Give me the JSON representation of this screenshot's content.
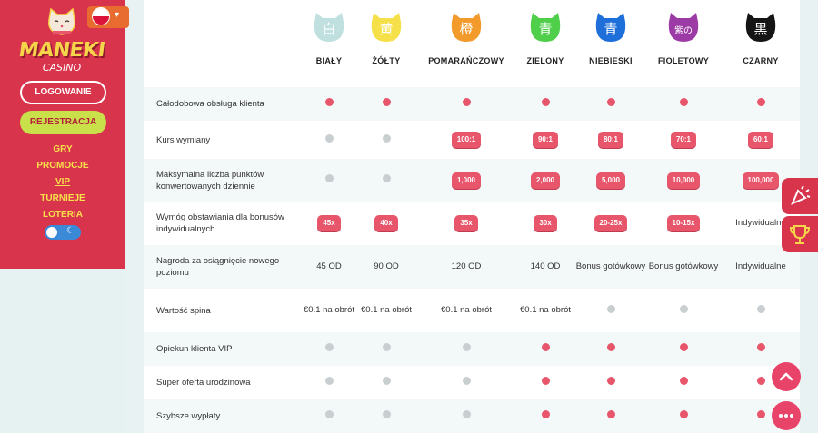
{
  "sidebar": {
    "logo_text": "MANEKI",
    "logo_sub": "CASINO",
    "login_label": "LOGOWANIE",
    "register_label": "REJESTRACJA",
    "nav": [
      "GRY",
      "PROMOCJE",
      "VIP",
      "TURNIEJE",
      "LOTERIA"
    ]
  },
  "tiers": [
    {
      "name": "BIAŁY",
      "glyph": "白",
      "color": "#bfe0de",
      "glyph_color": "#fff"
    },
    {
      "name": "ŻÓŁTY",
      "glyph": "黄",
      "color": "#f5e04a",
      "glyph_color": "#fff"
    },
    {
      "name": "POMARAŃCZOWY",
      "glyph": "橙",
      "color": "#f39a2c",
      "glyph_color": "#fff"
    },
    {
      "name": "ZIELONY",
      "glyph": "青",
      "color": "#4fcf4a",
      "glyph_color": "#fff"
    },
    {
      "name": "NIEBIESKI",
      "glyph": "青",
      "color": "#1e6fd9",
      "glyph_color": "#fff"
    },
    {
      "name": "FIOLETOWY",
      "glyph": "紫の",
      "color": "#9c3aa6",
      "glyph_color": "#fff"
    },
    {
      "name": "CZARNY",
      "glyph": "黒",
      "color": "#151515",
      "glyph_color": "#fff"
    }
  ],
  "rows": [
    {
      "label": "Całodobowa obsługa klienta",
      "cells": [
        {
          "t": "dot",
          "c": "red"
        },
        {
          "t": "dot",
          "c": "red"
        },
        {
          "t": "dot",
          "c": "red"
        },
        {
          "t": "dot",
          "c": "red"
        },
        {
          "t": "dot",
          "c": "red"
        },
        {
          "t": "dot",
          "c": "red"
        },
        {
          "t": "dot",
          "c": "red"
        }
      ]
    },
    {
      "label": "Kurs wymiany",
      "cells": [
        {
          "t": "dot",
          "c": "gray"
        },
        {
          "t": "dot",
          "c": "gray"
        },
        {
          "t": "pill",
          "v": "100:1"
        },
        {
          "t": "pill",
          "v": "90:1"
        },
        {
          "t": "pill",
          "v": "80:1"
        },
        {
          "t": "pill",
          "v": "70:1"
        },
        {
          "t": "pill",
          "v": "60:1"
        }
      ]
    },
    {
      "label": "Maksymalna liczba punktów konwertowanych dziennie",
      "cells": [
        {
          "t": "dot",
          "c": "gray"
        },
        {
          "t": "dot",
          "c": "gray"
        },
        {
          "t": "pill",
          "v": "1,000"
        },
        {
          "t": "pill",
          "v": "2,000"
        },
        {
          "t": "pill",
          "v": "5,000"
        },
        {
          "t": "pill",
          "v": "10,000"
        },
        {
          "t": "pill",
          "v": "100,000"
        }
      ]
    },
    {
      "label": "Wymóg obstawiania dla bonusów indywidualnych",
      "cells": [
        {
          "t": "pill",
          "v": "45x"
        },
        {
          "t": "pill",
          "v": "40x"
        },
        {
          "t": "pill",
          "v": "35x"
        },
        {
          "t": "pill",
          "v": "30x"
        },
        {
          "t": "pill",
          "v": "20-25x"
        },
        {
          "t": "pill",
          "v": "10-15x"
        },
        {
          "t": "text",
          "v": "Indywidualne"
        }
      ]
    },
    {
      "label": "Nagroda za osiągnięcie nowego poziomu",
      "cells": [
        {
          "t": "text",
          "v": "45 OD"
        },
        {
          "t": "text",
          "v": "90 OD"
        },
        {
          "t": "text",
          "v": "120 OD"
        },
        {
          "t": "text",
          "v": "140 OD"
        },
        {
          "t": "text",
          "v": "Bonus gotówkowy"
        },
        {
          "t": "text",
          "v": "Bonus gotówkowy"
        },
        {
          "t": "text",
          "v": "Indywidualne"
        }
      ]
    },
    {
      "label": "Wartość spina",
      "cells": [
        {
          "t": "text",
          "v": "€0.1 na obrót"
        },
        {
          "t": "text",
          "v": "€0.1 na obrót"
        },
        {
          "t": "text",
          "v": "€0.1 na obrót"
        },
        {
          "t": "text",
          "v": "€0.1 na obrót"
        },
        {
          "t": "dot",
          "c": "gray"
        },
        {
          "t": "dot",
          "c": "gray"
        },
        {
          "t": "dot",
          "c": "gray"
        }
      ]
    },
    {
      "label": "Opiekun klienta VIP",
      "cells": [
        {
          "t": "dot",
          "c": "gray"
        },
        {
          "t": "dot",
          "c": "gray"
        },
        {
          "t": "dot",
          "c": "gray"
        },
        {
          "t": "dot",
          "c": "red"
        },
        {
          "t": "dot",
          "c": "red"
        },
        {
          "t": "dot",
          "c": "red"
        },
        {
          "t": "dot",
          "c": "red"
        }
      ]
    },
    {
      "label": "Super oferta urodzinowa",
      "cells": [
        {
          "t": "dot",
          "c": "gray"
        },
        {
          "t": "dot",
          "c": "gray"
        },
        {
          "t": "dot",
          "c": "gray"
        },
        {
          "t": "dot",
          "c": "red"
        },
        {
          "t": "dot",
          "c": "red"
        },
        {
          "t": "dot",
          "c": "red"
        },
        {
          "t": "dot",
          "c": "red"
        }
      ]
    },
    {
      "label": "Szybsze wypłaty",
      "cells": [
        {
          "t": "dot",
          "c": "gray"
        },
        {
          "t": "dot",
          "c": "gray"
        },
        {
          "t": "dot",
          "c": "gray"
        },
        {
          "t": "dot",
          "c": "red"
        },
        {
          "t": "dot",
          "c": "red"
        },
        {
          "t": "dot",
          "c": "red"
        },
        {
          "t": "dot",
          "c": "red"
        }
      ]
    }
  ],
  "colors": {
    "accent": "#d8344c",
    "pill": "#e8566b",
    "register": "#c9e04a"
  }
}
